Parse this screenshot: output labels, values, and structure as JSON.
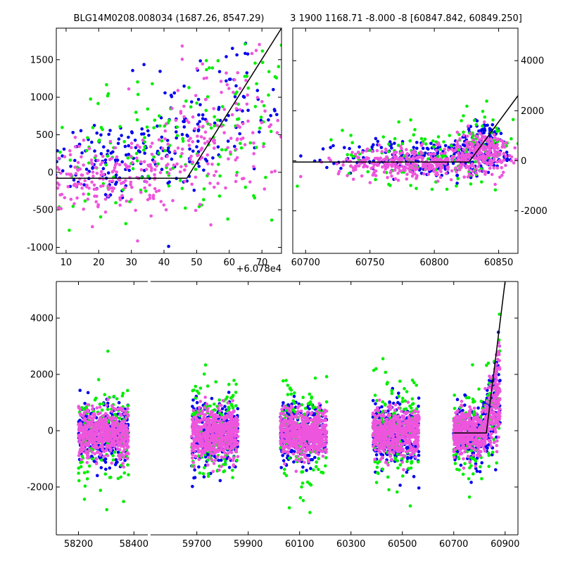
{
  "titles": {
    "left": "BLG14M0208.008034 (1687.26, 8547.29)",
    "right": "3 1900 1168.71 -8.000 -8 [60847.842, 60849.250]"
  },
  "offset_label": "+6.078e4",
  "colors": {
    "series_a": "#0000ee",
    "series_b": "#00ee00",
    "series_c": "#ee55dd",
    "model": "#000000"
  },
  "chart_data": [
    {
      "type": "scatter",
      "name": "left-zoom",
      "xlim": [
        7,
        76
      ],
      "ylim": [
        -1080,
        1920
      ],
      "x_ticks": [
        10,
        20,
        30,
        40,
        50,
        60,
        70
      ],
      "y_ticks": [
        -1000,
        -500,
        0,
        500,
        1000,
        1500
      ],
      "y_tick_side": "left",
      "model": [
        [
          7,
          -80
        ],
        [
          47,
          -80
        ],
        [
          76,
          1920
        ]
      ],
      "series": [
        {
          "color_key": "series_a",
          "centers": [
            [
              20,
              150,
              10,
              280,
              90
            ],
            [
              40,
              280,
              12,
              300,
              80
            ],
            [
              60,
              900,
              12,
              450,
              80
            ]
          ]
        },
        {
          "color_key": "series_b",
          "centers": [
            [
              20,
              200,
              12,
              420,
              60
            ],
            [
              45,
              300,
              15,
              500,
              60
            ],
            [
              62,
              800,
              12,
              500,
              70
            ]
          ]
        },
        {
          "color_key": "series_c",
          "centers": [
            [
              18,
              -120,
              10,
              220,
              140
            ],
            [
              38,
              50,
              12,
              250,
              110
            ],
            [
              58,
              600,
              12,
              450,
              110
            ]
          ]
        }
      ]
    },
    {
      "type": "scatter",
      "name": "right-zoom",
      "xlim": [
        60690,
        60865
      ],
      "ylim": [
        -3700,
        5300
      ],
      "x_ticks": [
        60700,
        60750,
        60800,
        60850
      ],
      "y_ticks": [
        -2000,
        0,
        2000,
        4000
      ],
      "y_tick_side": "right",
      "model": [
        [
          60690,
          -50
        ],
        [
          60827,
          -50
        ],
        [
          60865,
          2600
        ]
      ],
      "series": [
        {
          "color_key": "series_a",
          "centers": [
            [
              60790,
              100,
              30,
              380,
              230
            ],
            [
              60838,
              600,
              10,
              500,
              150
            ]
          ]
        },
        {
          "color_key": "series_b",
          "centers": [
            [
              60790,
              250,
              30,
              600,
              110
            ],
            [
              60838,
              700,
              12,
              700,
              60
            ]
          ]
        },
        {
          "color_key": "series_c",
          "centers": [
            [
              60785,
              -80,
              30,
              300,
              360
            ],
            [
              60838,
              400,
              10,
              400,
              200
            ]
          ]
        }
      ]
    },
    {
      "type": "scatter",
      "name": "full-season",
      "ylim": [
        -3700,
        5300
      ],
      "y_ticks": [
        -2000,
        0,
        2000,
        4000
      ],
      "y_tick_side": "left",
      "segments": [
        {
          "xlim": [
            58120,
            58450
          ],
          "x_ticks": [
            58200,
            58400
          ],
          "centers": [
            58290
          ],
          "spread": 110
        },
        {
          "xlim": [
            59520,
            60950
          ],
          "x_ticks": [
            59700,
            59900,
            60100,
            60300,
            60500,
            60700,
            60900
          ],
          "centers": [
            59770,
            60115,
            60475,
            60790
          ],
          "spread": 110
        }
      ],
      "model": [
        [
          60700,
          -80
        ],
        [
          60827,
          -80
        ],
        [
          60900,
          5300
        ]
      ],
      "series": [
        {
          "color_key": "series_a",
          "sd": 550,
          "n": 300
        },
        {
          "color_key": "series_b",
          "sd": 900,
          "n": 160
        },
        {
          "color_key": "series_c",
          "sd": 420,
          "n": 560
        }
      ]
    }
  ]
}
